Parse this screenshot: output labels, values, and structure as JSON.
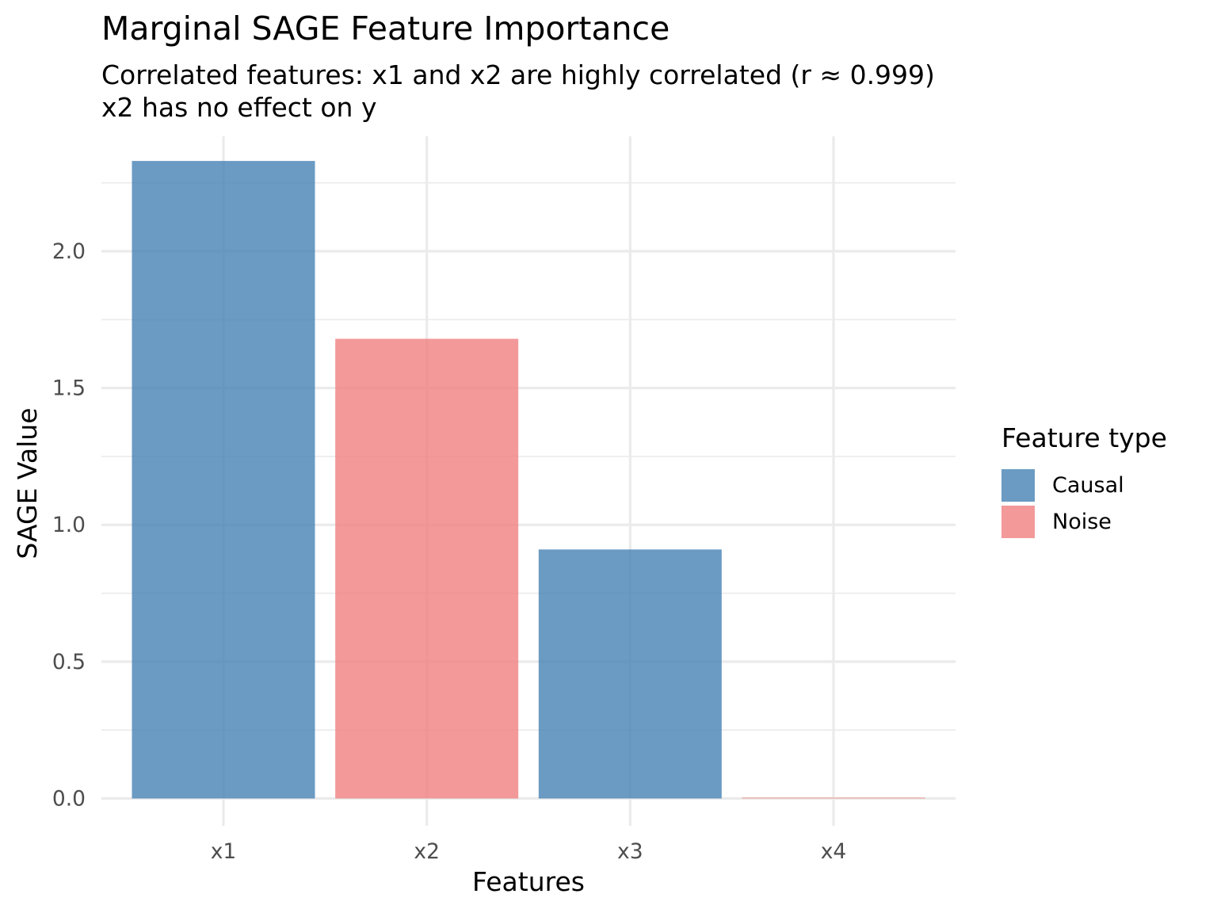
{
  "chart_data": {
    "type": "bar",
    "title": "Marginal SAGE Feature Importance",
    "subtitle": [
      "Correlated features: x1 and x2 are highly correlated (r ≈ 0.999)",
      "x2 has no effect on y"
    ],
    "xlabel": "Features",
    "ylabel": "SAGE Value",
    "categories": [
      "x1",
      "x2",
      "x3",
      "x4"
    ],
    "values": [
      2.33,
      1.68,
      0.91,
      0.002
    ],
    "groups": [
      "Causal",
      "Noise",
      "Causal",
      "Noise"
    ],
    "ylim": [
      -0.1,
      2.42
    ],
    "yticks": [
      0.0,
      0.5,
      1.0,
      1.5,
      2.0
    ],
    "ytick_labels": [
      "0.0",
      "0.5",
      "1.0",
      "1.5",
      "2.0"
    ],
    "grid": true,
    "legend": {
      "title": "Feature type",
      "position": "right",
      "entries": [
        {
          "label": "Causal",
          "color": "#4682B4"
        },
        {
          "label": "Noise",
          "color": "#F08080"
        }
      ]
    },
    "bar_opacity": 0.8
  }
}
